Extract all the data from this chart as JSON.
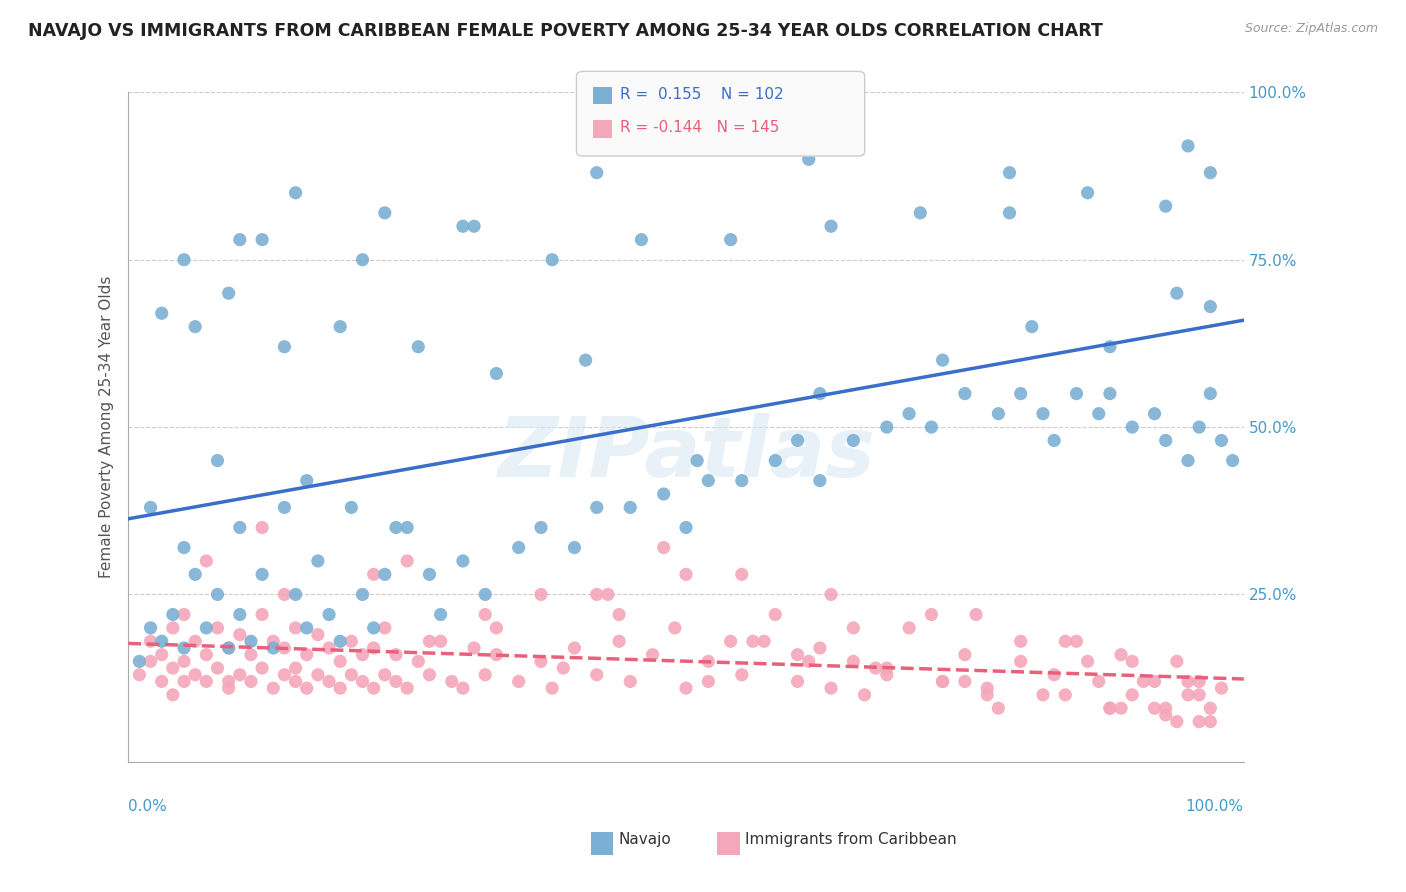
{
  "title": "NAVAJO VS IMMIGRANTS FROM CARIBBEAN FEMALE POVERTY AMONG 25-34 YEAR OLDS CORRELATION CHART",
  "source": "Source: ZipAtlas.com",
  "ylabel": "Female Poverty Among 25-34 Year Olds",
  "legend1_r": "0.155",
  "legend1_n": "102",
  "legend2_r": "-0.144",
  "legend2_n": "145",
  "navajo_color": "#7BAFD4",
  "caribbean_color": "#F4A7B9",
  "navajo_line_color": "#3B6EC8",
  "caribbean_line_color": "#E8607A",
  "watermark": "ZIPatlas",
  "navajo_points_x": [
    0.01,
    0.02,
    0.03,
    0.04,
    0.05,
    0.05,
    0.06,
    0.07,
    0.08,
    0.09,
    0.1,
    0.1,
    0.11,
    0.12,
    0.13,
    0.14,
    0.15,
    0.16,
    0.17,
    0.18,
    0.19,
    0.2,
    0.21,
    0.22,
    0.23,
    0.25,
    0.27,
    0.28,
    0.3,
    0.32,
    0.35,
    0.37,
    0.4,
    0.42,
    0.45,
    0.48,
    0.5,
    0.52,
    0.55,
    0.58,
    0.6,
    0.62,
    0.65,
    0.68,
    0.7,
    0.72,
    0.75,
    0.78,
    0.8,
    0.82,
    0.83,
    0.85,
    0.87,
    0.88,
    0.9,
    0.92,
    0.93,
    0.95,
    0.96,
    0.97,
    0.98,
    0.99,
    0.03,
    0.06,
    0.09,
    0.14,
    0.19,
    0.26,
    0.33,
    0.41,
    0.51,
    0.62,
    0.73,
    0.81,
    0.88,
    0.94,
    0.97,
    0.05,
    0.12,
    0.21,
    0.31,
    0.38,
    0.46,
    0.54,
    0.63,
    0.71,
    0.79,
    0.86,
    0.93,
    0.97,
    0.1,
    0.23,
    0.42,
    0.61,
    0.79,
    0.95,
    0.15,
    0.3,
    0.02,
    0.08,
    0.16,
    0.24
  ],
  "navajo_points_y": [
    0.15,
    0.2,
    0.18,
    0.22,
    0.32,
    0.17,
    0.28,
    0.2,
    0.25,
    0.17,
    0.22,
    0.35,
    0.18,
    0.28,
    0.17,
    0.38,
    0.25,
    0.2,
    0.3,
    0.22,
    0.18,
    0.38,
    0.25,
    0.2,
    0.28,
    0.35,
    0.28,
    0.22,
    0.3,
    0.25,
    0.32,
    0.35,
    0.32,
    0.38,
    0.38,
    0.4,
    0.35,
    0.42,
    0.42,
    0.45,
    0.48,
    0.42,
    0.48,
    0.5,
    0.52,
    0.5,
    0.55,
    0.52,
    0.55,
    0.52,
    0.48,
    0.55,
    0.52,
    0.55,
    0.5,
    0.52,
    0.48,
    0.45,
    0.5,
    0.55,
    0.48,
    0.45,
    0.67,
    0.65,
    0.7,
    0.62,
    0.65,
    0.62,
    0.58,
    0.6,
    0.45,
    0.55,
    0.6,
    0.65,
    0.62,
    0.7,
    0.68,
    0.75,
    0.78,
    0.75,
    0.8,
    0.75,
    0.78,
    0.78,
    0.8,
    0.82,
    0.82,
    0.85,
    0.83,
    0.88,
    0.78,
    0.82,
    0.88,
    0.9,
    0.88,
    0.92,
    0.85,
    0.8,
    0.38,
    0.45,
    0.42,
    0.35
  ],
  "caribbean_points_x": [
    0.01,
    0.02,
    0.02,
    0.03,
    0.03,
    0.04,
    0.04,
    0.05,
    0.05,
    0.05,
    0.06,
    0.06,
    0.07,
    0.07,
    0.08,
    0.08,
    0.09,
    0.09,
    0.1,
    0.1,
    0.11,
    0.11,
    0.12,
    0.12,
    0.13,
    0.13,
    0.14,
    0.14,
    0.15,
    0.15,
    0.16,
    0.16,
    0.17,
    0.17,
    0.18,
    0.18,
    0.19,
    0.19,
    0.2,
    0.2,
    0.21,
    0.22,
    0.22,
    0.23,
    0.23,
    0.24,
    0.24,
    0.25,
    0.26,
    0.27,
    0.28,
    0.29,
    0.3,
    0.31,
    0.32,
    0.33,
    0.35,
    0.37,
    0.38,
    0.4,
    0.42,
    0.44,
    0.45,
    0.47,
    0.5,
    0.52,
    0.55,
    0.57,
    0.6,
    0.62,
    0.63,
    0.65,
    0.68,
    0.7,
    0.73,
    0.75,
    0.77,
    0.8,
    0.83,
    0.85,
    0.87,
    0.88,
    0.89,
    0.9,
    0.92,
    0.93,
    0.94,
    0.95,
    0.96,
    0.97,
    0.98,
    0.42,
    0.5,
    0.58,
    0.07,
    0.14,
    0.22,
    0.32,
    0.43,
    0.54,
    0.65,
    0.76,
    0.84,
    0.9,
    0.95,
    0.48,
    0.55,
    0.63,
    0.72,
    0.8,
    0.86,
    0.91,
    0.96,
    0.04,
    0.09,
    0.15,
    0.21,
    0.27,
    0.33,
    0.39,
    0.52,
    0.66,
    0.78,
    0.89,
    0.94,
    0.12,
    0.25,
    0.37,
    0.49,
    0.61,
    0.73,
    0.84,
    0.92,
    0.97,
    0.6,
    0.68,
    0.75,
    0.82,
    0.88,
    0.93,
    0.96,
    0.44,
    0.56,
    0.67,
    0.77
  ],
  "caribbean_points_y": [
    0.13,
    0.15,
    0.18,
    0.12,
    0.16,
    0.14,
    0.2,
    0.12,
    0.15,
    0.22,
    0.13,
    0.18,
    0.12,
    0.16,
    0.14,
    0.2,
    0.11,
    0.17,
    0.13,
    0.19,
    0.12,
    0.16,
    0.14,
    0.22,
    0.11,
    0.18,
    0.13,
    0.17,
    0.12,
    0.2,
    0.11,
    0.16,
    0.13,
    0.19,
    0.12,
    0.17,
    0.11,
    0.15,
    0.13,
    0.18,
    0.12,
    0.11,
    0.17,
    0.13,
    0.2,
    0.12,
    0.16,
    0.11,
    0.15,
    0.13,
    0.18,
    0.12,
    0.11,
    0.17,
    0.13,
    0.2,
    0.12,
    0.15,
    0.11,
    0.17,
    0.13,
    0.18,
    0.12,
    0.16,
    0.11,
    0.15,
    0.13,
    0.18,
    0.12,
    0.17,
    0.11,
    0.15,
    0.13,
    0.2,
    0.12,
    0.16,
    0.11,
    0.15,
    0.13,
    0.18,
    0.12,
    0.08,
    0.16,
    0.1,
    0.12,
    0.08,
    0.15,
    0.1,
    0.12,
    0.08,
    0.11,
    0.25,
    0.28,
    0.22,
    0.3,
    0.25,
    0.28,
    0.22,
    0.25,
    0.18,
    0.2,
    0.22,
    0.18,
    0.15,
    0.12,
    0.32,
    0.28,
    0.25,
    0.22,
    0.18,
    0.15,
    0.12,
    0.1,
    0.1,
    0.12,
    0.14,
    0.16,
    0.18,
    0.16,
    0.14,
    0.12,
    0.1,
    0.08,
    0.08,
    0.06,
    0.35,
    0.3,
    0.25,
    0.2,
    0.15,
    0.12,
    0.1,
    0.08,
    0.06,
    0.16,
    0.14,
    0.12,
    0.1,
    0.08,
    0.07,
    0.06,
    0.22,
    0.18,
    0.14,
    0.1
  ],
  "grid_color": "#CCCCCC",
  "background_color": "#FFFFFF"
}
